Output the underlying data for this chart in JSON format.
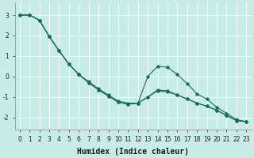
{
  "title": "",
  "xlabel": "Humidex (Indice chaleur)",
  "ylabel": "",
  "xlim": [
    -0.5,
    23.5
  ],
  "ylim": [
    -2.6,
    3.6
  ],
  "background_color": "#c8ece6",
  "grid_color": "#ffffff",
  "line_color": "#1a6b5a",
  "x": [
    0,
    1,
    2,
    3,
    4,
    5,
    6,
    7,
    8,
    9,
    10,
    11,
    12,
    13,
    14,
    15,
    16,
    17,
    18,
    19,
    20,
    21,
    22,
    23
  ],
  "line1": [
    3.0,
    3.0,
    2.75,
    1.95,
    1.25,
    0.6,
    0.1,
    -0.25,
    -0.6,
    -0.9,
    -1.2,
    -1.3,
    -1.3,
    -1.0,
    -0.7,
    -0.75,
    -0.9,
    -1.1,
    -1.3,
    -1.45,
    -1.65,
    -1.9,
    -2.15,
    -2.2
  ],
  "line2": [
    3.0,
    3.0,
    2.75,
    1.95,
    1.25,
    0.6,
    0.1,
    -0.3,
    -0.65,
    -0.95,
    -1.25,
    -1.35,
    -1.3,
    -1.0,
    -0.65,
    -0.7,
    -0.9,
    -1.1,
    -1.3,
    -1.45,
    -1.65,
    -1.9,
    -2.15,
    -2.2
  ],
  "line3": [
    3.0,
    3.0,
    2.75,
    1.95,
    1.25,
    0.6,
    0.1,
    -0.3,
    -0.65,
    -0.95,
    -1.25,
    -1.35,
    -1.3,
    0.0,
    0.5,
    0.45,
    0.1,
    -0.35,
    -0.85,
    -1.1,
    -1.5,
    -1.8,
    -2.1,
    -2.2
  ],
  "yticks": [
    -2,
    -1,
    0,
    1,
    2,
    3
  ],
  "xticks": [
    0,
    1,
    2,
    3,
    4,
    5,
    6,
    7,
    8,
    9,
    10,
    11,
    12,
    13,
    14,
    15,
    16,
    17,
    18,
    19,
    20,
    21,
    22,
    23
  ],
  "marker": "D",
  "markersize": 1.8,
  "linewidth": 0.8,
  "tick_fontsize": 5.5,
  "label_fontsize": 7.0,
  "xlabel_fontweight": "bold",
  "xlabel_fontfamily": "monospace"
}
